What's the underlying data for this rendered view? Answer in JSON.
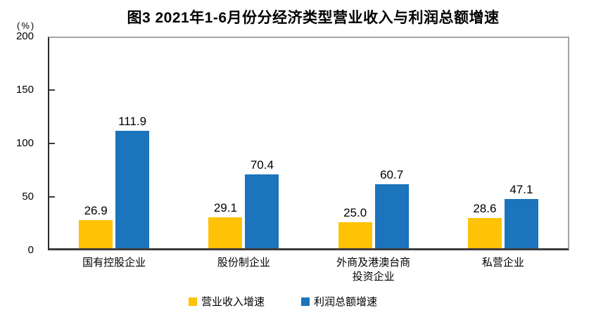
{
  "colors": {
    "revenue": "#FEC306",
    "profit": "#1B74BC",
    "axis_dark": "#3d3d3d",
    "border_gray": "#a3a3a3"
  },
  "chart_data": {
    "type": "bar",
    "title": "图3 2021年1-6月份分经济类型营业收入与利润总额增速",
    "ylabel": "(%)",
    "ylim": [
      0,
      200
    ],
    "yticks": [
      0,
      50,
      100,
      150,
      200
    ],
    "grid": false,
    "legend_position": "bottom",
    "categories": [
      "国有控股企业",
      "股份制企业",
      "外商及港澳台商\n投资企业",
      "私营企业"
    ],
    "series": [
      {
        "name": "营业收入增速",
        "color_key": "revenue",
        "values": [
          26.9,
          29.1,
          25.0,
          28.6
        ],
        "labels": [
          "26.9",
          "29.1",
          "25.0",
          "28.6"
        ]
      },
      {
        "name": "利润总额增速",
        "color_key": "profit",
        "values": [
          111.9,
          70.4,
          60.7,
          47.1
        ],
        "labels": [
          "111.9",
          "70.4",
          "60.7",
          "47.1"
        ]
      }
    ]
  }
}
